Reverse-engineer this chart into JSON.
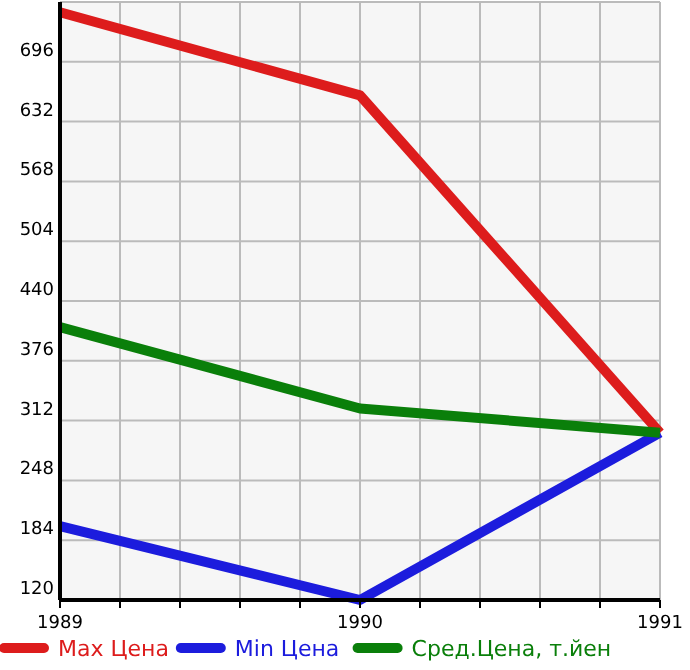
{
  "chart_data": {
    "type": "line",
    "x": [
      1989,
      1990,
      1991
    ],
    "series": [
      {
        "name": "Max Цена",
        "color": "#dd1c1c",
        "values": [
          749,
          660,
          299
        ]
      },
      {
        "name": "Min Цена",
        "color": "#1c1cdd",
        "values": [
          199,
          120,
          299
        ]
      },
      {
        "name": "Сред.Цена, т.йен",
        "color": "#0a7f0a",
        "values": [
          412,
          325,
          299
        ]
      }
    ],
    "xlim": [
      1989,
      1991
    ],
    "xticks": [
      1989,
      {
        "value": 1989.2,
        "label": null
      },
      {
        "value": 1989.4,
        "label": null
      },
      {
        "value": 1989.6,
        "label": null
      },
      {
        "value": 1989.8,
        "label": null
      },
      1990,
      {
        "value": 1990.2,
        "label": null
      },
      {
        "value": 1990.4,
        "label": null
      },
      {
        "value": 1990.6,
        "label": null
      },
      {
        "value": 1990.8,
        "label": null
      },
      1991
    ],
    "ylim": [
      120,
      760
    ],
    "yticks": [
      120,
      184,
      248,
      312,
      376,
      440,
      504,
      568,
      632,
      696,
      {
        "value": 760,
        "label": null
      }
    ],
    "grid": true,
    "legend": "bottom",
    "marker": "none",
    "line_style": "solid"
  }
}
